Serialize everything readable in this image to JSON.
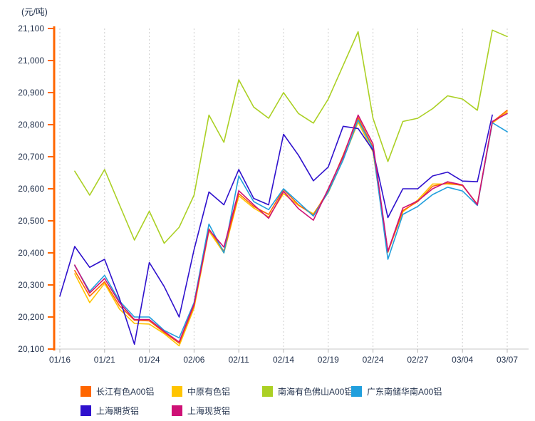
{
  "unit_label": "(元/吨)",
  "axis": {
    "y_tick_labels": [
      "21,100",
      "21,000",
      "20,900",
      "20,800",
      "20,700",
      "20,600",
      "20,500",
      "20,400",
      "20,300",
      "20,200",
      "20,100"
    ],
    "x_tick_labels": [
      "01/16",
      "01/21",
      "01/24",
      "02/06",
      "02/11",
      "02/14",
      "02/19",
      "02/24",
      "02/27",
      "03/04",
      "03/07"
    ],
    "axis_color": "#ff6600",
    "grid_color": "#cccccc",
    "label_color": "#25344f"
  },
  "chart_data": {
    "type": "line",
    "title": "",
    "ylabel": "(元/吨)",
    "ylim": [
      20100,
      21100
    ],
    "y_tick_step": 100,
    "n_points": 31,
    "x_tick_indices": [
      0,
      3,
      6,
      9,
      12,
      15,
      18,
      21,
      24,
      27,
      30
    ],
    "x_tick_labels": [
      "01/16",
      "01/21",
      "01/24",
      "02/06",
      "02/11",
      "02/14",
      "02/19",
      "02/24",
      "02/27",
      "03/04",
      "03/07"
    ],
    "grid": "vertical-dashed-only",
    "legend_position": "bottom",
    "series": [
      {
        "name": "长江有色A00铝",
        "color": "#ff6600",
        "values": [
          null,
          20345,
          20265,
          20310,
          20235,
          20190,
          20188,
          20152,
          20118,
          20235,
          20475,
          20405,
          20585,
          20545,
          20520,
          20598,
          20550,
          20518,
          20595,
          20705,
          20822,
          20730,
          20402,
          20532,
          20560,
          20608,
          20618,
          20610,
          20552,
          20808,
          20845
        ]
      },
      {
        "name": "中原有色铝",
        "color": "#ffc400",
        "values": [
          null,
          20335,
          20245,
          20305,
          20225,
          20180,
          20178,
          20148,
          20110,
          20228,
          20468,
          20400,
          20578,
          20540,
          20512,
          20585,
          20548,
          20522,
          20588,
          20692,
          20808,
          20715,
          20405,
          20528,
          20565,
          20615,
          20615,
          20612,
          20550,
          20805,
          20840
        ]
      },
      {
        "name": "南海有色佛山A00铝",
        "color": "#abd024",
        "values": [
          null,
          20655,
          20580,
          20660,
          20550,
          20440,
          20530,
          20430,
          20480,
          20580,
          20830,
          20745,
          20940,
          20855,
          20820,
          20900,
          20835,
          20805,
          20880,
          20985,
          21090,
          20820,
          20685,
          20810,
          20820,
          20850,
          20890,
          20880,
          20845,
          21095,
          21075
        ]
      },
      {
        "name": "广东南储华南A00铝",
        "color": "#219fdd",
        "values": [
          null,
          20360,
          20280,
          20330,
          20250,
          20200,
          20200,
          20158,
          20135,
          20245,
          20490,
          20400,
          20640,
          20560,
          20535,
          20600,
          20558,
          20515,
          20590,
          20690,
          20815,
          20725,
          20380,
          20520,
          20545,
          20582,
          20605,
          20593,
          20548,
          20806,
          20778
        ]
      },
      {
        "name": "上海期货铝",
        "color": "#2f11cd",
        "values": [
          20265,
          20420,
          20355,
          20380,
          20258,
          20115,
          20370,
          20295,
          20200,
          20410,
          20590,
          20550,
          20660,
          20570,
          20550,
          20770,
          20705,
          20625,
          20668,
          20795,
          20788,
          20720,
          20510,
          20600,
          20600,
          20640,
          20652,
          20624,
          20622,
          20830,
          null
        ]
      },
      {
        "name": "上海现货铝",
        "color": "#ce1176",
        "values": [
          null,
          20362,
          20275,
          20320,
          20245,
          20192,
          20192,
          20155,
          20122,
          20240,
          20472,
          20418,
          20594,
          20550,
          20508,
          20592,
          20538,
          20502,
          20600,
          20700,
          20830,
          20740,
          20405,
          20540,
          20562,
          20600,
          20622,
          20612,
          20550,
          20810,
          20835
        ]
      }
    ]
  },
  "legend": {
    "row1_items": [
      "长江有色A00铝",
      "中原有色铝",
      "南海有色佛山A00铝",
      "广东南储华南A00铝"
    ],
    "row2_items": [
      "上海期货铝",
      "上海现货铝"
    ]
  }
}
